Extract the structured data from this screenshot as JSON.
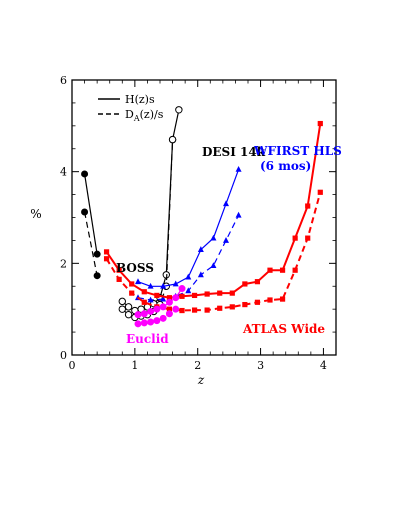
{
  "chart_data": {
    "type": "line",
    "title": "",
    "xlabel": "z",
    "ylabel": "%",
    "xlim": [
      0,
      4.2
    ],
    "ylim": [
      0,
      6
    ],
    "xticks": [
      0,
      1,
      2,
      3,
      4
    ],
    "yticks": [
      0,
      2,
      4,
      6
    ],
    "grid": false,
    "legend": {
      "placement": "top-left",
      "entries": [
        {
          "label": "H(z)s",
          "linestyle": "solid"
        },
        {
          "label": "D_A(z)/s",
          "linestyle": "dashed"
        }
      ]
    },
    "labels": {
      "boss": "BOSS",
      "desi": "DESI 14k",
      "wfirst_line1": "WFIRST HLS",
      "wfirst_line2": "(6 mos)",
      "atlas": "ATLAS Wide",
      "euclid": "Euclid"
    },
    "colors": {
      "boss": "#000000",
      "desi": "#000000",
      "wfirst": "#0000ff",
      "atlas": "#ff0000",
      "euclid": "#ff00ff"
    },
    "series": [
      {
        "group": "boss",
        "quantity": "H(z)s",
        "linestyle": "solid",
        "marker": "filled-circle",
        "x": [
          0.2,
          0.4
        ],
        "y": [
          3.95,
          2.2
        ]
      },
      {
        "group": "boss",
        "quantity": "D_A(z)/s",
        "linestyle": "dashed",
        "marker": "filled-circle",
        "x": [
          0.2,
          0.4
        ],
        "y": [
          3.12,
          1.73
        ]
      },
      {
        "group": "desi",
        "quantity": "H(z)s",
        "linestyle": "solid",
        "marker": "open-circle",
        "x": [
          0.8,
          0.9,
          1.0,
          1.1,
          1.2,
          1.3,
          1.4,
          1.5,
          1.6,
          1.7
        ],
        "y": [
          1.17,
          1.05,
          0.97,
          1.0,
          1.05,
          1.12,
          1.25,
          1.75,
          4.7,
          5.35
        ]
      },
      {
        "group": "desi",
        "quantity": "D_A(z)/s",
        "linestyle": "dashed",
        "marker": "open-circle",
        "x": [
          0.8,
          0.9,
          1.0,
          1.1,
          1.2,
          1.3,
          1.4,
          1.5,
          1.6
        ],
        "y": [
          1.0,
          0.88,
          0.82,
          0.85,
          0.88,
          0.95,
          1.1,
          1.5,
          4.7
        ]
      },
      {
        "group": "wfirst",
        "quantity": "H(z)s",
        "linestyle": "solid",
        "marker": "filled-triangle",
        "x": [
          1.05,
          1.25,
          1.45,
          1.65,
          1.85,
          2.05,
          2.25,
          2.45,
          2.65
        ],
        "y": [
          1.6,
          1.5,
          1.5,
          1.55,
          1.7,
          2.3,
          2.55,
          3.3,
          4.05
        ]
      },
      {
        "group": "wfirst",
        "quantity": "D_A(z)/s",
        "linestyle": "dashed",
        "marker": "filled-triangle",
        "x": [
          1.05,
          1.25,
          1.45,
          1.65,
          1.85,
          2.05,
          2.25,
          2.45,
          2.65
        ],
        "y": [
          1.25,
          1.2,
          1.22,
          1.28,
          1.4,
          1.75,
          1.95,
          2.5,
          3.05
        ]
      },
      {
        "group": "atlas",
        "quantity": "H(z)s",
        "linestyle": "solid",
        "marker": "filled-square",
        "x": [
          0.55,
          0.75,
          0.95,
          1.15,
          1.35,
          1.55,
          1.75,
          1.95,
          2.15,
          2.35,
          2.55,
          2.75,
          2.95,
          3.15,
          3.35,
          3.55,
          3.75,
          3.95
        ],
        "y": [
          2.25,
          1.85,
          1.55,
          1.38,
          1.3,
          1.25,
          1.28,
          1.3,
          1.33,
          1.35,
          1.35,
          1.55,
          1.6,
          1.85,
          1.85,
          2.55,
          3.25,
          5.05
        ]
      },
      {
        "group": "atlas",
        "quantity": "D_A(z)/s",
        "linestyle": "dashed",
        "marker": "filled-square",
        "x": [
          0.55,
          0.75,
          0.95,
          1.15,
          1.35,
          1.55,
          1.75,
          1.95,
          2.15,
          2.35,
          2.55,
          2.75,
          2.95,
          3.15,
          3.35,
          3.55,
          3.75,
          3.95
        ],
        "y": [
          2.1,
          1.65,
          1.35,
          1.15,
          1.05,
          1.0,
          0.97,
          0.98,
          0.98,
          1.02,
          1.05,
          1.1,
          1.15,
          1.2,
          1.22,
          1.85,
          2.55,
          3.55
        ]
      },
      {
        "group": "euclid",
        "quantity": "H(z)s",
        "linestyle": "solid",
        "marker": "filled-circle",
        "x": [
          1.05,
          1.15,
          1.25,
          1.35,
          1.45,
          1.55,
          1.65,
          1.75
        ],
        "y": [
          0.88,
          0.9,
          0.95,
          1.0,
          1.05,
          1.15,
          1.25,
          1.45
        ]
      },
      {
        "group": "euclid",
        "quantity": "D_A(z)/s",
        "linestyle": "dashed",
        "marker": "filled-circle",
        "x": [
          1.05,
          1.15,
          1.25,
          1.35,
          1.45,
          1.55,
          1.65
        ],
        "y": [
          0.68,
          0.7,
          0.72,
          0.75,
          0.8,
          0.9,
          1.0
        ]
      }
    ]
  }
}
